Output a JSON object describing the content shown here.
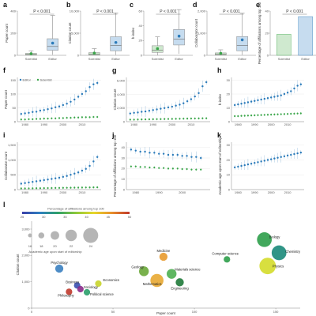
{
  "colors": {
    "editor": "#2b7bba",
    "scientist": "#3aa64a",
    "editor_box": "#c6dcef",
    "scientist_box": "#cfe9cf"
  },
  "top_panels": [
    {
      "label": "a",
      "ylabel": "Paper count",
      "pvalue": "P < 0.001",
      "yticks": [
        "0",
        "200",
        "400"
      ],
      "ylim": [
        0,
        400
      ],
      "categories": [
        "Scientist",
        "Editor"
      ],
      "boxes": [
        {
          "q1": 3,
          "median": 8,
          "q3": 18,
          "whisker_low": 0,
          "whisker_high": 40,
          "mean": 15
        },
        {
          "q1": 45,
          "median": 80,
          "q3": 150,
          "whisker_low": 5,
          "whisker_high": 360,
          "mean": 110
        }
      ]
    },
    {
      "label": "b",
      "ylabel": "Citation count",
      "pvalue": "P < 0.001",
      "yticks": [
        "0",
        "5,000",
        "10,000"
      ],
      "ylim": [
        0,
        10000
      ],
      "categories": [
        "Scientist",
        "Editor"
      ],
      "boxes": [
        {
          "q1": 50,
          "median": 200,
          "q3": 600,
          "whisker_low": 0,
          "whisker_high": 1500,
          "mean": 500
        },
        {
          "q1": 1000,
          "median": 2200,
          "q3": 4200,
          "whisker_low": 100,
          "whisker_high": 9600,
          "mean": 2900
        }
      ]
    },
    {
      "label": "c",
      "ylabel": "h-index",
      "pvalue": "P < 0.001",
      "yticks": [
        "0",
        "20",
        "40",
        "60"
      ],
      "ylim": [
        0,
        60
      ],
      "categories": [
        "Scientist",
        "Editor"
      ],
      "boxes": [
        {
          "q1": 4,
          "median": 7,
          "q3": 13,
          "whisker_low": 0,
          "whisker_high": 25,
          "mean": 9
        },
        {
          "q1": 14,
          "median": 22,
          "q3": 35,
          "whisker_low": 2,
          "whisker_high": 62,
          "mean": 26
        }
      ]
    },
    {
      "label": "d",
      "ylabel": "Collaborator count",
      "pvalue": "P < 0.001",
      "yticks": [
        "0",
        "1,000",
        "2,000"
      ],
      "ylim": [
        0,
        2000
      ],
      "categories": [
        "Scientist",
        "Editor"
      ],
      "boxes": [
        {
          "q1": 15,
          "median": 40,
          "q3": 110,
          "whisker_low": 0,
          "whisker_high": 250,
          "mean": 90
        },
        {
          "q1": 200,
          "median": 450,
          "q3": 850,
          "whisker_low": 20,
          "whisker_high": 1900,
          "mean": 700
        }
      ]
    },
    {
      "label": "e",
      "ylabel": "Percentage of affiliations among top 100",
      "pvalue": "P < 0.001",
      "yticks": [
        "0",
        "20",
        "40"
      ],
      "ylim": [
        0,
        40
      ],
      "categories": [
        "Scientist",
        "Editor"
      ],
      "bars": [
        19,
        35
      ]
    }
  ],
  "time_panels": [
    {
      "label": "f",
      "ylabel": "Paper count",
      "xticks": [
        "1980",
        "1990",
        "2000",
        "2010"
      ],
      "yticks": [
        "0",
        "50",
        "100",
        "150"
      ],
      "ylim": [
        0,
        160
      ],
      "xlim": [
        1976,
        2020
      ],
      "legend": [
        "Editor",
        "Scientist"
      ],
      "editor": [
        [
          1978,
          28
        ],
        [
          1980,
          30
        ],
        [
          1982,
          32
        ],
        [
          1984,
          35
        ],
        [
          1986,
          36
        ],
        [
          1988,
          40
        ],
        [
          1990,
          42
        ],
        [
          1992,
          45
        ],
        [
          1994,
          48
        ],
        [
          1996,
          52
        ],
        [
          1998,
          55
        ],
        [
          2000,
          60
        ],
        [
          2002,
          65
        ],
        [
          2004,
          72
        ],
        [
          2006,
          80
        ],
        [
          2008,
          90
        ],
        [
          2010,
          100
        ],
        [
          2012,
          110
        ],
        [
          2014,
          125
        ],
        [
          2016,
          135
        ],
        [
          2018,
          140
        ]
      ],
      "scientist": [
        [
          1978,
          8
        ],
        [
          1980,
          8
        ],
        [
          1982,
          9
        ],
        [
          1984,
          9
        ],
        [
          1986,
          10
        ],
        [
          1988,
          10
        ],
        [
          1990,
          11
        ],
        [
          1992,
          11
        ],
        [
          1994,
          12
        ],
        [
          1996,
          12
        ],
        [
          1998,
          13
        ],
        [
          2000,
          13
        ],
        [
          2002,
          14
        ],
        [
          2004,
          14
        ],
        [
          2006,
          15
        ],
        [
          2008,
          15
        ],
        [
          2010,
          16
        ],
        [
          2012,
          16
        ],
        [
          2014,
          16
        ],
        [
          2016,
          17
        ],
        [
          2018,
          17
        ]
      ]
    },
    {
      "label": "g",
      "ylabel": "Citation count",
      "xticks": [
        "1980",
        "1990",
        "2000",
        "2010"
      ],
      "yticks": [
        "0",
        "2,000",
        "4,000",
        "6,000"
      ],
      "ylim": [
        0,
        6500
      ],
      "xlim": [
        1976,
        2020
      ],
      "editor": [
        [
          1978,
          1200
        ],
        [
          1980,
          1300
        ],
        [
          1982,
          1350
        ],
        [
          1984,
          1450
        ],
        [
          1986,
          1500
        ],
        [
          1988,
          1600
        ],
        [
          1990,
          1700
        ],
        [
          1992,
          1800
        ],
        [
          1994,
          1900
        ],
        [
          1996,
          2000
        ],
        [
          1998,
          2100
        ],
        [
          2000,
          2200
        ],
        [
          2002,
          2350
        ],
        [
          2004,
          2500
        ],
        [
          2006,
          2700
        ],
        [
          2008,
          3000
        ],
        [
          2010,
          3300
        ],
        [
          2012,
          3700
        ],
        [
          2014,
          4200
        ],
        [
          2016,
          5200
        ],
        [
          2018,
          5800
        ]
      ],
      "scientist": [
        [
          1978,
          300
        ],
        [
          1980,
          300
        ],
        [
          1982,
          320
        ],
        [
          1984,
          330
        ],
        [
          1986,
          340
        ],
        [
          1988,
          350
        ],
        [
          1990,
          360
        ],
        [
          1992,
          370
        ],
        [
          1994,
          380
        ],
        [
          1996,
          390
        ],
        [
          1998,
          400
        ],
        [
          2000,
          410
        ],
        [
          2002,
          420
        ],
        [
          2004,
          430
        ],
        [
          2006,
          440
        ],
        [
          2008,
          450
        ],
        [
          2010,
          460
        ],
        [
          2012,
          470
        ],
        [
          2014,
          480
        ],
        [
          2016,
          490
        ],
        [
          2018,
          500
        ]
      ]
    },
    {
      "label": "h",
      "ylabel": "h-index",
      "xticks": [
        "1980",
        "1990",
        "2000",
        "2010"
      ],
      "yticks": [
        "0",
        "10",
        "20",
        "30"
      ],
      "ylim": [
        0,
        32
      ],
      "xlim": [
        1976,
        2020
      ],
      "editor": [
        [
          1978,
          12
        ],
        [
          1980,
          12.5
        ],
        [
          1982,
          13
        ],
        [
          1984,
          13.5
        ],
        [
          1986,
          14
        ],
        [
          1988,
          14.5
        ],
        [
          1990,
          15
        ],
        [
          1992,
          15.5
        ],
        [
          1994,
          16
        ],
        [
          1996,
          16.5
        ],
        [
          1998,
          17
        ],
        [
          2000,
          17.5
        ],
        [
          2002,
          18
        ],
        [
          2004,
          18.5
        ],
        [
          2006,
          19
        ],
        [
          2008,
          20
        ],
        [
          2010,
          21
        ],
        [
          2012,
          22
        ],
        [
          2014,
          24
        ],
        [
          2016,
          26
        ],
        [
          2018,
          27
        ]
      ],
      "scientist": [
        [
          1978,
          4
        ],
        [
          1980,
          4
        ],
        [
          1982,
          4.2
        ],
        [
          1984,
          4.3
        ],
        [
          1986,
          4.4
        ],
        [
          1988,
          4.5
        ],
        [
          1990,
          4.6
        ],
        [
          1992,
          4.7
        ],
        [
          1994,
          4.8
        ],
        [
          1996,
          4.9
        ],
        [
          1998,
          5
        ],
        [
          2000,
          5.1
        ],
        [
          2002,
          5.2
        ],
        [
          2004,
          5.3
        ],
        [
          2006,
          5.4
        ],
        [
          2008,
          5.5
        ],
        [
          2010,
          5.6
        ],
        [
          2012,
          5.7
        ],
        [
          2014,
          5.8
        ],
        [
          2016,
          5.9
        ],
        [
          2018,
          6
        ]
      ]
    },
    {
      "label": "i",
      "ylabel": "Collaborator count",
      "xticks": [
        "1980",
        "1990",
        "2000",
        "2010"
      ],
      "yticks": [
        "0",
        "500",
        "1,000",
        "1,500"
      ],
      "ylim": [
        0,
        1600
      ],
      "xlim": [
        1976,
        2020
      ],
      "editor": [
        [
          1978,
          200
        ],
        [
          1980,
          220
        ],
        [
          1982,
          240
        ],
        [
          1984,
          260
        ],
        [
          1986,
          280
        ],
        [
          1988,
          300
        ],
        [
          1990,
          320
        ],
        [
          1992,
          340
        ],
        [
          1994,
          360
        ],
        [
          1996,
          380
        ],
        [
          1998,
          400
        ],
        [
          2000,
          430
        ],
        [
          2002,
          460
        ],
        [
          2004,
          500
        ],
        [
          2006,
          540
        ],
        [
          2008,
          580
        ],
        [
          2010,
          640
        ],
        [
          2012,
          700
        ],
        [
          2014,
          800
        ],
        [
          2016,
          950
        ],
        [
          2018,
          1100
        ]
      ],
      "scientist": [
        [
          1978,
          40
        ],
        [
          1980,
          40
        ],
        [
          1982,
          42
        ],
        [
          1984,
          44
        ],
        [
          1986,
          46
        ],
        [
          1988,
          48
        ],
        [
          1990,
          50
        ],
        [
          1992,
          52
        ],
        [
          1994,
          54
        ],
        [
          1996,
          56
        ],
        [
          1998,
          58
        ],
        [
          2000,
          60
        ],
        [
          2002,
          62
        ],
        [
          2004,
          64
        ],
        [
          2006,
          66
        ],
        [
          2008,
          68
        ],
        [
          2010,
          70
        ],
        [
          2012,
          72
        ],
        [
          2014,
          74
        ],
        [
          2016,
          76
        ],
        [
          2018,
          78
        ]
      ]
    },
    {
      "label": "j",
      "ylabel": "Percentage of affiliations among top 100",
      "xticks": [
        "1980",
        "1990",
        "2000"
      ],
      "yticks": [
        "0",
        "10",
        "20",
        "30",
        "40"
      ],
      "ylim": [
        0,
        45
      ],
      "xlim": [
        1976,
        2012
      ],
      "editor": [
        [
          1978,
          38
        ],
        [
          1980,
          37
        ],
        [
          1982,
          36
        ],
        [
          1984,
          36
        ],
        [
          1986,
          35
        ],
        [
          1988,
          35
        ],
        [
          1990,
          34
        ],
        [
          1992,
          34
        ],
        [
          1994,
          33
        ],
        [
          1996,
          33
        ],
        [
          1998,
          33
        ],
        [
          2000,
          32
        ],
        [
          2002,
          32
        ],
        [
          2004,
          31
        ],
        [
          2006,
          31
        ],
        [
          2008,
          30
        ]
      ],
      "scientist": [
        [
          1978,
          22
        ],
        [
          1980,
          22
        ],
        [
          1982,
          21.5
        ],
        [
          1984,
          21.5
        ],
        [
          1986,
          21
        ],
        [
          1988,
          21
        ],
        [
          1990,
          20.5
        ],
        [
          1992,
          20.5
        ],
        [
          1994,
          20
        ],
        [
          1996,
          20
        ],
        [
          1998,
          20
        ],
        [
          2000,
          19.5
        ],
        [
          2002,
          19.5
        ],
        [
          2004,
          19
        ],
        [
          2006,
          19
        ],
        [
          2008,
          19
        ]
      ]
    },
    {
      "label": "k",
      "ylabel": "Academic age upon start of editorship",
      "xticks": [
        "1980",
        "1990",
        "2000",
        "2010"
      ],
      "yticks": [
        "0",
        "10",
        "20",
        "30"
      ],
      "ylim": [
        0,
        32
      ],
      "xlim": [
        1976,
        2020
      ],
      "editor": [
        [
          1978,
          15
        ],
        [
          1980,
          15.5
        ],
        [
          1982,
          16
        ],
        [
          1984,
          16.5
        ],
        [
          1986,
          17
        ],
        [
          1988,
          17.5
        ],
        [
          1990,
          18
        ],
        [
          1992,
          18.5
        ],
        [
          1994,
          19
        ],
        [
          1996,
          19.5
        ],
        [
          1998,
          20
        ],
        [
          2000,
          20.5
        ],
        [
          2002,
          21
        ],
        [
          2004,
          21.5
        ],
        [
          2006,
          22
        ],
        [
          2008,
          22.5
        ],
        [
          2010,
          23
        ],
        [
          2012,
          23.5
        ],
        [
          2014,
          24
        ],
        [
          2016,
          24.5
        ],
        [
          2018,
          25
        ]
      ]
    }
  ],
  "bubble_panel": {
    "label": "l",
    "xlabel": "Paper count",
    "ylabel": "Citation count",
    "xticks": [
      "0",
      "50",
      "100",
      "150"
    ],
    "yticks": [
      "0",
      "1,000",
      "2,000",
      "3,000"
    ],
    "xlim": [
      0,
      165
    ],
    "ylim": [
      0,
      3300
    ],
    "colorbar_title": "Percentage of affiliations among top 100",
    "colorbar_ticks": [
      "25",
      "30",
      "35",
      "40",
      "45",
      "50"
    ],
    "size_legend_values": [
      "16",
      "18",
      "20",
      "22",
      "24"
    ],
    "size_legend_title": "Academic age upon start of editorship",
    "fields": [
      {
        "name": "Biology",
        "x": 143,
        "y": 2600,
        "age": 22,
        "top100": 32,
        "color": "#2e9e4a"
      },
      {
        "name": "Chemistry",
        "x": 152,
        "y": 2100,
        "age": 22,
        "top100": 36,
        "color": "#1b8a7a"
      },
      {
        "name": "Computer science",
        "x": 120,
        "y": 1850,
        "age": 17,
        "top100": 30,
        "color": "#2e9e4a"
      },
      {
        "name": "Physics",
        "x": 145,
        "y": 1600,
        "age": 23,
        "top100": 45,
        "color": "#d4dc2a"
      },
      {
        "name": "Medicine",
        "x": 81,
        "y": 1950,
        "age": 18,
        "top100": 40,
        "color": "#e89a2c"
      },
      {
        "name": "Psychology",
        "x": 17,
        "y": 1500,
        "age": 18,
        "top100": 28,
        "color": "#3a7fc0"
      },
      {
        "name": "Geology",
        "x": 69,
        "y": 1400,
        "age": 19,
        "top100": 35,
        "color": "#6aa83a"
      },
      {
        "name": "Materials science",
        "x": 86,
        "y": 1300,
        "age": 19,
        "top100": 33,
        "color": "#4caf50"
      },
      {
        "name": "Mathematics",
        "x": 77,
        "y": 1050,
        "age": 21,
        "top100": 40,
        "color": "#e8a832"
      },
      {
        "name": "Engineering",
        "x": 91,
        "y": 980,
        "age": 18,
        "top100": 30,
        "color": "#1f7a3a"
      },
      {
        "name": "Business",
        "x": 28,
        "y": 860,
        "age": 17,
        "top100": 27,
        "color": "#3a4fb0"
      },
      {
        "name": "Economics",
        "x": 41,
        "y": 930,
        "age": 17,
        "top100": 44,
        "color": "#c8d42a"
      },
      {
        "name": "Sociology",
        "x": 30,
        "y": 720,
        "age": 17,
        "top100": 36,
        "color": "#8a2a8a"
      },
      {
        "name": "Philosophy",
        "x": 23,
        "y": 620,
        "age": 17,
        "top100": 48,
        "color": "#c0392b"
      },
      {
        "name": "Political science",
        "x": 34,
        "y": 600,
        "age": 17,
        "top100": 31,
        "color": "#2a9e6a"
      }
    ]
  }
}
